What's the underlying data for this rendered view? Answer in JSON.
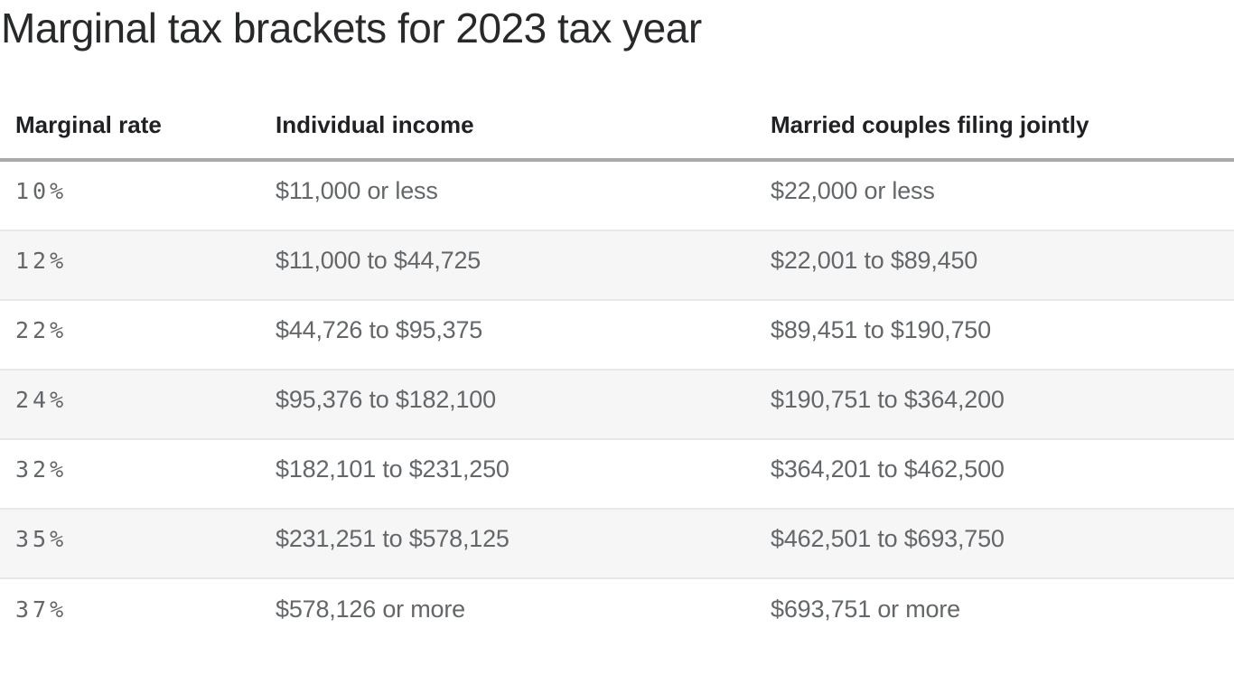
{
  "chart_data": {
    "type": "table",
    "title": "Marginal tax brackets for 2023 tax year",
    "columns": [
      "Marginal rate",
      "Individual income",
      "Married couples filing jointly"
    ],
    "rows": [
      [
        "10%",
        "$11,000 or less",
        "$22,000 or less"
      ],
      [
        "12%",
        "$11,000 to $44,725",
        "$22,001 to $89,450"
      ],
      [
        "22%",
        "$44,726 to $95,375",
        "$89,451 to $190,750"
      ],
      [
        "24%",
        "$95,376 to $182,100",
        "$190,751 to $364,200"
      ],
      [
        "32%",
        "$182,101 to $231,250",
        "$364,201 to $462,500"
      ],
      [
        "35%",
        "$231,251 to $578,125",
        "$462,501 to $693,750"
      ],
      [
        "37%",
        "$578,126 or more",
        "$693,751 or more"
      ]
    ],
    "layout_hints": {
      "zebra_striping": true,
      "header_rule": "thick gray line under column headers",
      "rate_column_font": "monospace with slashed zero"
    }
  },
  "colors": {
    "title_text": "#28292b",
    "header_text": "#202124",
    "body_text": "#646769",
    "header_rule": "#a9aaab",
    "row_divider": "#e8e8e8",
    "zebra_stripe": "#f6f6f7",
    "background": "#ffffff"
  }
}
